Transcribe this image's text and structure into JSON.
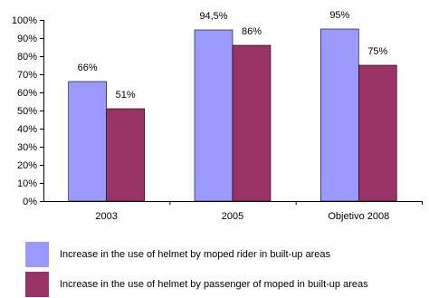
{
  "chart_data": {
    "type": "bar",
    "categories": [
      "2003",
      "2005",
      "Objetivo 2008"
    ],
    "series": [
      {
        "name": "Increase in the use of helmet by moped rider in built-up areas",
        "values": [
          66,
          94.5,
          95
        ],
        "labels": [
          "66%",
          "94,5%",
          "95%"
        ],
        "color": "#9999ff"
      },
      {
        "name": "Increase in the use of helmet by passenger of moped in built-up areas",
        "values": [
          51,
          86,
          75
        ],
        "labels": [
          "51%",
          "86%",
          "75%"
        ],
        "color": "#993366"
      }
    ],
    "yticks": [
      "0%",
      "10%",
      "20%",
      "30%",
      "40%",
      "50%",
      "60%",
      "70%",
      "80%",
      "90%",
      "100%"
    ],
    "ylim": [
      0,
      100
    ],
    "grid": false,
    "legend_position": "bottom"
  }
}
